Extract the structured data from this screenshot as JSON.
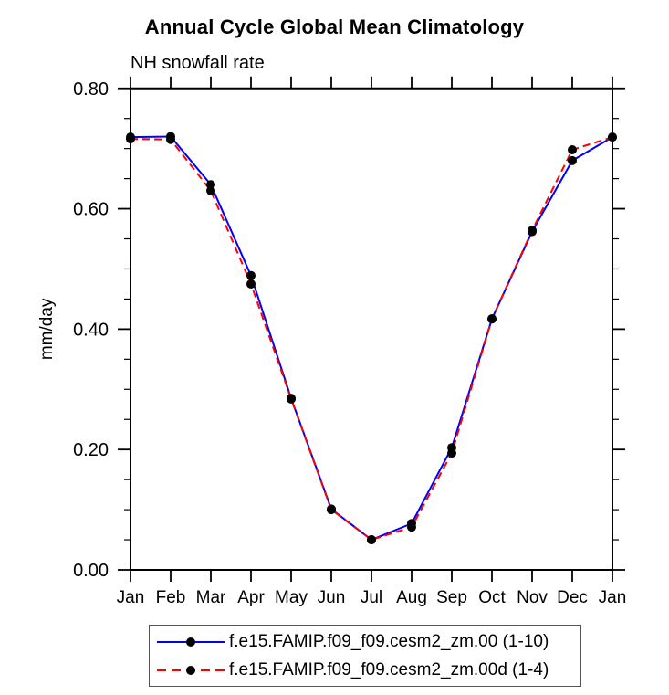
{
  "title": "Annual Cycle Global Mean Climatology",
  "subtitle": "NH snowfall rate",
  "colors": {
    "series1": "#0000ff",
    "series2": "#ff0000",
    "marker": "#000000",
    "axis": "#000000",
    "legend_border": "#555555"
  },
  "chart_data": {
    "type": "line",
    "title": "Annual Cycle Global Mean Climatology",
    "subtitle": "NH snowfall rate",
    "ylabel": "mm/day",
    "xlabel": "",
    "categories": [
      "Jan",
      "Feb",
      "Mar",
      "Apr",
      "May",
      "Jun",
      "Jul",
      "Aug",
      "Sep",
      "Oct",
      "Nov",
      "Dec",
      "Jan"
    ],
    "ylim": [
      0.0,
      0.8
    ],
    "ytick_major_values": [
      0.0,
      0.2,
      0.4,
      0.6,
      0.8
    ],
    "ytick_major_labels": [
      "0.00",
      "0.20",
      "0.40",
      "0.60",
      "0.80"
    ],
    "ytick_minor_step": 0.05,
    "grid": false,
    "legend_position": "bottom",
    "series": [
      {
        "name": "f.e15.FAMIP.f09_f09.cesm2_zm.00 (1-10)",
        "color": "#0000ff",
        "line_style": "solid",
        "marker": "filled-circle",
        "marker_color": "#000000",
        "values": [
          0.719,
          0.72,
          0.64,
          0.489,
          0.285,
          0.101,
          0.05,
          0.077,
          0.203,
          0.417,
          0.562,
          0.68,
          0.719
        ]
      },
      {
        "name": "f.e15.FAMIP.f09_f09.cesm2_zm.00d (1-4)",
        "color": "#ff0000",
        "line_style": "dashed",
        "marker": "filled-circle",
        "marker_color": "#000000",
        "values": [
          0.716,
          0.715,
          0.63,
          0.475,
          0.284,
          0.1,
          0.05,
          0.071,
          0.194,
          0.417,
          0.564,
          0.698,
          0.719
        ]
      }
    ]
  }
}
